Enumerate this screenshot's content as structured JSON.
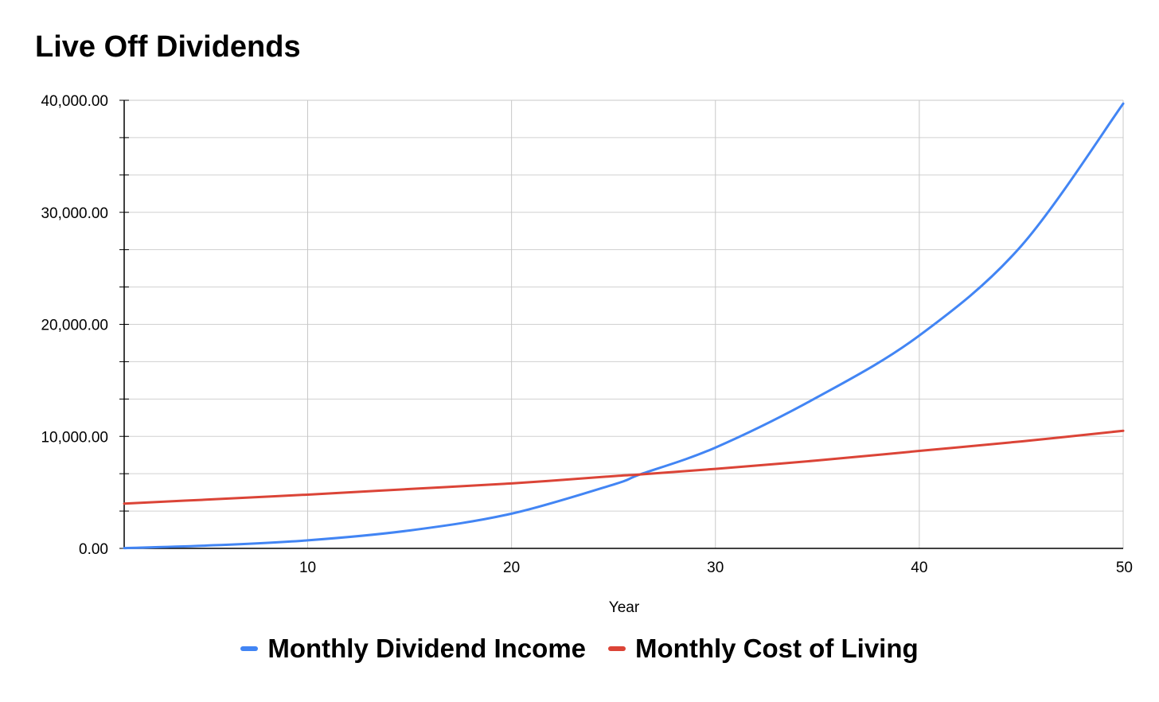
{
  "chart_data": {
    "type": "line",
    "title": "Live Off Dividends",
    "xlabel": "Year",
    "ylabel": "",
    "xlim": [
      1,
      50
    ],
    "ylim": [
      0,
      40000
    ],
    "x_ticks": [
      10,
      20,
      30,
      40,
      50
    ],
    "y_ticks": [
      0,
      10000,
      20000,
      30000,
      40000
    ],
    "y_tick_labels": [
      "0.00",
      "10,000.00",
      "20,000.00",
      "30,000.00",
      "40,000.00"
    ],
    "grid": true,
    "legend_position": "bottom",
    "x": [
      1,
      5,
      10,
      15,
      20,
      25,
      26.3,
      30,
      35,
      40,
      45,
      50
    ],
    "series": [
      {
        "name": "Monthly Dividend Income",
        "color": "#4285F4",
        "values": [
          30,
          250,
          720,
          1600,
          3100,
          5700,
          6600,
          9000,
          13500,
          19000,
          27000,
          39700
        ]
      },
      {
        "name": "Monthly Cost of Living",
        "color": "#DB4437",
        "values": [
          4000,
          4350,
          4800,
          5300,
          5800,
          6450,
          6600,
          7100,
          7850,
          8700,
          9550,
          10500
        ]
      }
    ]
  }
}
